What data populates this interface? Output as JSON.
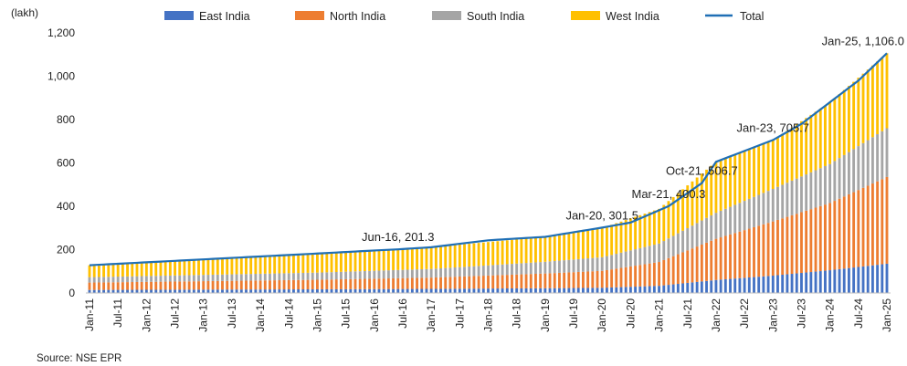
{
  "chart_data": {
    "type": "bar",
    "stacked": true,
    "unit_label": "(lakh)",
    "source": "Source: NSE EPR",
    "ylim": [
      0,
      1200
    ],
    "yticks": [
      0,
      200,
      400,
      600,
      800,
      1000,
      1200
    ],
    "ytick_labels": [
      "0",
      "200",
      "400",
      "600",
      "800",
      "1,000",
      "1,200"
    ],
    "x_start": "Jan-11",
    "x_end": "Jan-25",
    "xtick_labels": [
      "Jan-11",
      "Jul-11",
      "Jan-12",
      "Jul-12",
      "Jan-13",
      "Jul-13",
      "Jan-14",
      "Jul-14",
      "Jan-15",
      "Jul-15",
      "Jan-16",
      "Jul-16",
      "Jan-17",
      "Jul-17",
      "Jan-18",
      "Jul-18",
      "Jan-19",
      "Jul-19",
      "Jan-20",
      "Jul-20",
      "Jan-21",
      "Jul-21",
      "Jan-22",
      "Jul-22",
      "Jan-23",
      "Jul-23",
      "Jan-24",
      "Jul-24",
      "Jan-25"
    ],
    "legend_placement": "top",
    "series": [
      {
        "name": "East India",
        "color": "#4472C4",
        "anchors": [
          [
            "Jan-11",
            14
          ],
          [
            "Jan-15",
            17
          ],
          [
            "Jan-17",
            19
          ],
          [
            "Jan-19",
            22
          ],
          [
            "Jan-20",
            24
          ],
          [
            "Jan-21",
            33
          ],
          [
            "Jan-22",
            60
          ],
          [
            "Jan-23",
            80
          ],
          [
            "Jan-24",
            105
          ],
          [
            "Jan-25",
            135
          ]
        ]
      },
      {
        "name": "North India",
        "color": "#ED7D31",
        "anchors": [
          [
            "Jan-11",
            34
          ],
          [
            "Jan-15",
            44
          ],
          [
            "Jan-17",
            52
          ],
          [
            "Jan-19",
            68
          ],
          [
            "Jan-20",
            78
          ],
          [
            "Jan-21",
            110
          ],
          [
            "Jan-22",
            190
          ],
          [
            "Jan-23",
            250
          ],
          [
            "Jan-24",
            310
          ],
          [
            "Jan-25",
            400
          ]
        ]
      },
      {
        "name": "South India",
        "color": "#A5A5A5",
        "anchors": [
          [
            "Jan-11",
            25
          ],
          [
            "Jan-15",
            33
          ],
          [
            "Jan-17",
            40
          ],
          [
            "Jan-19",
            54
          ],
          [
            "Jan-20",
            63
          ],
          [
            "Jan-21",
            85
          ],
          [
            "Jan-22",
            120
          ],
          [
            "Jan-23",
            150
          ],
          [
            "Jan-24",
            180
          ],
          [
            "Jan-25",
            225
          ]
        ]
      },
      {
        "name": "West India",
        "color": "#FFC000",
        "anchors": [
          [
            "Jan-11",
            55
          ],
          [
            "Jan-15",
            88
          ],
          [
            "Jan-17",
            100
          ],
          [
            "Jan-19",
            115
          ],
          [
            "Jan-20",
            135
          ],
          [
            "Jan-21",
            160
          ],
          [
            "Jan-22",
            235
          ],
          [
            "Jan-23",
            225
          ],
          [
            "Jan-24",
            285
          ],
          [
            "Jan-25",
            346
          ]
        ]
      },
      {
        "name": "Total",
        "type": "line",
        "color": "#1F6FB5",
        "anchors": [
          [
            "Jan-11",
            128
          ],
          [
            "Jan-15",
            182
          ],
          [
            "Jan-16",
            196
          ],
          [
            "Jun-16",
            201.3
          ],
          [
            "Jan-17",
            211
          ],
          [
            "Jan-18",
            243
          ],
          [
            "Jan-19",
            259
          ],
          [
            "Jan-20",
            301.5
          ],
          [
            "Jul-20",
            325
          ],
          [
            "Mar-21",
            400.3
          ],
          [
            "Oct-21",
            506.7
          ],
          [
            "Jan-22",
            605
          ],
          [
            "Jan-23",
            705.7
          ],
          [
            "Jul-23",
            780
          ],
          [
            "Jan-24",
            880
          ],
          [
            "Jul-24",
            980
          ],
          [
            "Jan-25",
            1106.0
          ]
        ]
      }
    ],
    "annotations": [
      {
        "label": "Jun-16, 201.3",
        "x": "Jun-16",
        "y": 201.3
      },
      {
        "label": "Jan-20, 301.5",
        "x": "Jan-20",
        "y": 301.5
      },
      {
        "label": "Mar-21, 400.3",
        "x": "Mar-21",
        "y": 400.3
      },
      {
        "label": "Oct-21, 506.7",
        "x": "Oct-21",
        "y": 506.7
      },
      {
        "label": "Jan-23, 705.7",
        "x": "Jan-23",
        "y": 705.7
      },
      {
        "label": "Jan-25, 1,106.0",
        "x": "Jan-25",
        "y": 1106.0
      }
    ]
  }
}
